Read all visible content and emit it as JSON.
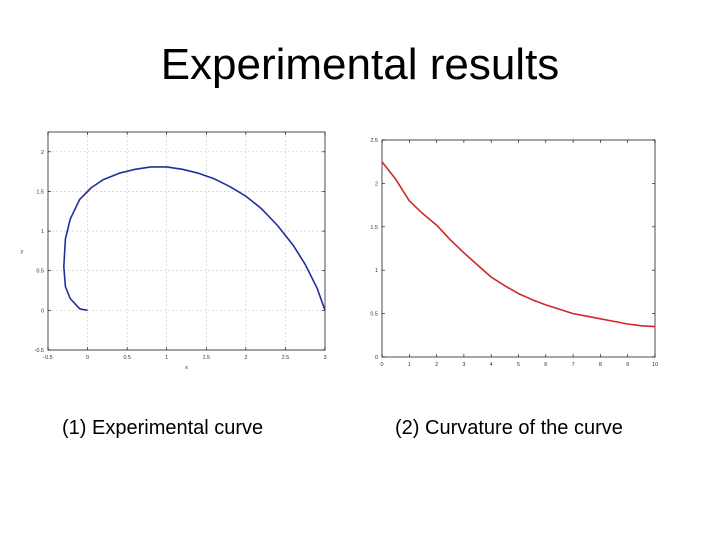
{
  "slide": {
    "title": "Experimental results",
    "caption_left": "(1) Experimental curve",
    "caption_right": "(2) Curvature of the curve"
  },
  "colors": {
    "curve1": "#1f2fa0",
    "curve2": "#cc2a2a",
    "grid": "#c8c8c8",
    "axes": "#000000"
  },
  "chart_data": [
    {
      "type": "line",
      "title": "",
      "xlabel": "x",
      "ylabel": "y",
      "xlim": [
        -0.5,
        3
      ],
      "ylim": [
        -0.5,
        2.25
      ],
      "xticks": [
        "-0.5",
        "0",
        "0.5",
        "1",
        "1.5",
        "2",
        "2.5",
        "3"
      ],
      "xtick_values": [
        -0.5,
        0,
        0.5,
        1,
        1.5,
        2,
        2.5,
        3
      ],
      "yticks": [
        "-0.5",
        "0",
        "0.5",
        "1",
        "1.5",
        "2"
      ],
      "ytick_values": [
        -0.5,
        0,
        0.5,
        1,
        1.5,
        2
      ],
      "grid": true,
      "series": [
        {
          "x": [
            0,
            -0.1,
            -0.22,
            -0.28,
            -0.3,
            -0.28,
            -0.22,
            -0.1,
            0.05,
            0.2,
            0.4,
            0.6,
            0.8,
            1.0,
            1.2,
            1.4,
            1.6,
            1.8,
            2.0,
            2.2,
            2.4,
            2.6,
            2.75,
            2.9,
            3.0
          ],
          "y": [
            0,
            0.02,
            0.15,
            0.3,
            0.55,
            0.9,
            1.15,
            1.4,
            1.55,
            1.65,
            1.73,
            1.78,
            1.81,
            1.81,
            1.78,
            1.73,
            1.66,
            1.56,
            1.44,
            1.28,
            1.07,
            0.82,
            0.58,
            0.28,
            0.0
          ]
        }
      ]
    },
    {
      "type": "line",
      "title": "",
      "xlabel": "",
      "ylabel": "",
      "xlim": [
        0,
        10
      ],
      "ylim": [
        0,
        2.5
      ],
      "xticks": [
        "0",
        "1",
        "2",
        "3",
        "4",
        "5",
        "6",
        "7",
        "8",
        "9",
        "10"
      ],
      "xtick_values": [
        0,
        1,
        2,
        3,
        4,
        5,
        6,
        7,
        8,
        9,
        10
      ],
      "yticks": [
        "0",
        "0.5",
        "1",
        "1.5",
        "2",
        "2.5"
      ],
      "ytick_values": [
        0,
        0.5,
        1,
        1.5,
        2,
        2.5
      ],
      "grid": false,
      "series": [
        {
          "x": [
            0,
            0.5,
            1,
            1.5,
            2,
            2.5,
            3,
            3.5,
            4,
            4.5,
            5,
            5.5,
            6,
            6.5,
            7,
            7.5,
            8,
            8.5,
            9,
            9.5,
            10
          ],
          "y": [
            2.25,
            2.05,
            1.8,
            1.65,
            1.52,
            1.35,
            1.2,
            1.06,
            0.92,
            0.82,
            0.73,
            0.66,
            0.6,
            0.55,
            0.5,
            0.47,
            0.44,
            0.41,
            0.38,
            0.36,
            0.35
          ]
        }
      ]
    }
  ]
}
